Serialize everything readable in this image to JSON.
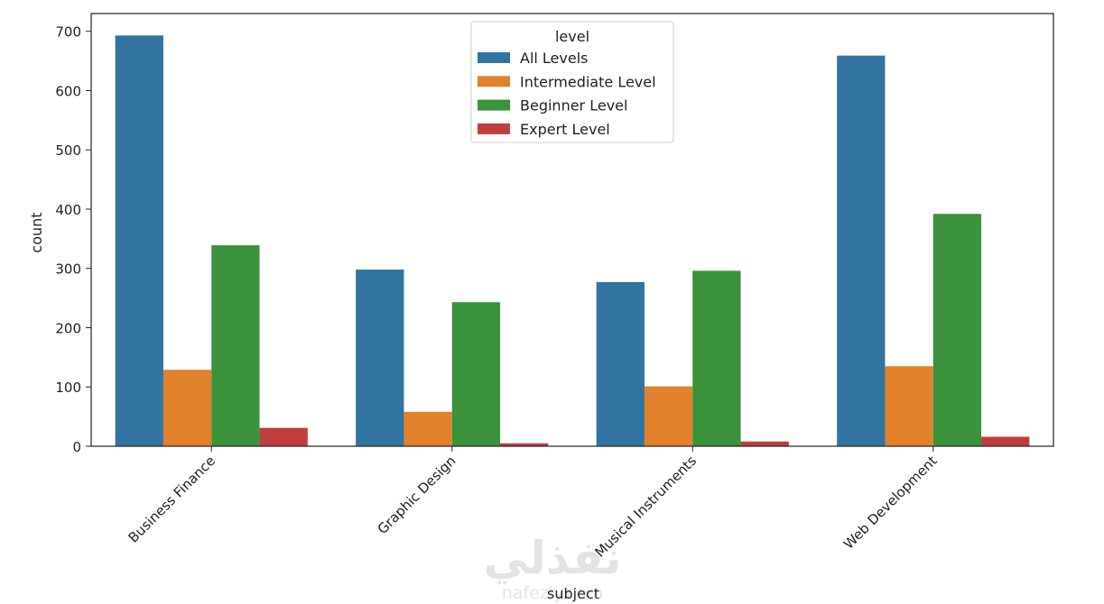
{
  "chart_data": {
    "type": "bar",
    "xlabel": "subject",
    "ylabel": "count",
    "ylim": [
      0,
      730
    ],
    "yticks": [
      0,
      100,
      200,
      300,
      400,
      500,
      600,
      700
    ],
    "categories": [
      "Business Finance",
      "Graphic Design",
      "Musical Instruments",
      "Web Development"
    ],
    "legend": {
      "title": "level",
      "placement": "top-center"
    },
    "grid": false,
    "series": [
      {
        "name": "All Levels",
        "color": "#3274a1",
        "values": [
          693,
          298,
          277,
          659
        ]
      },
      {
        "name": "Intermediate Level",
        "color": "#e1812c",
        "values": [
          129,
          58,
          101,
          135
        ]
      },
      {
        "name": "Beginner Level",
        "color": "#3a923a",
        "values": [
          339,
          243,
          296,
          392
        ]
      },
      {
        "name": "Expert Level",
        "color": "#c03d3e",
        "values": [
          31,
          5,
          8,
          16
        ]
      }
    ]
  },
  "watermark": {
    "arabic": "نفذلي",
    "latin": "nafezly.com"
  }
}
